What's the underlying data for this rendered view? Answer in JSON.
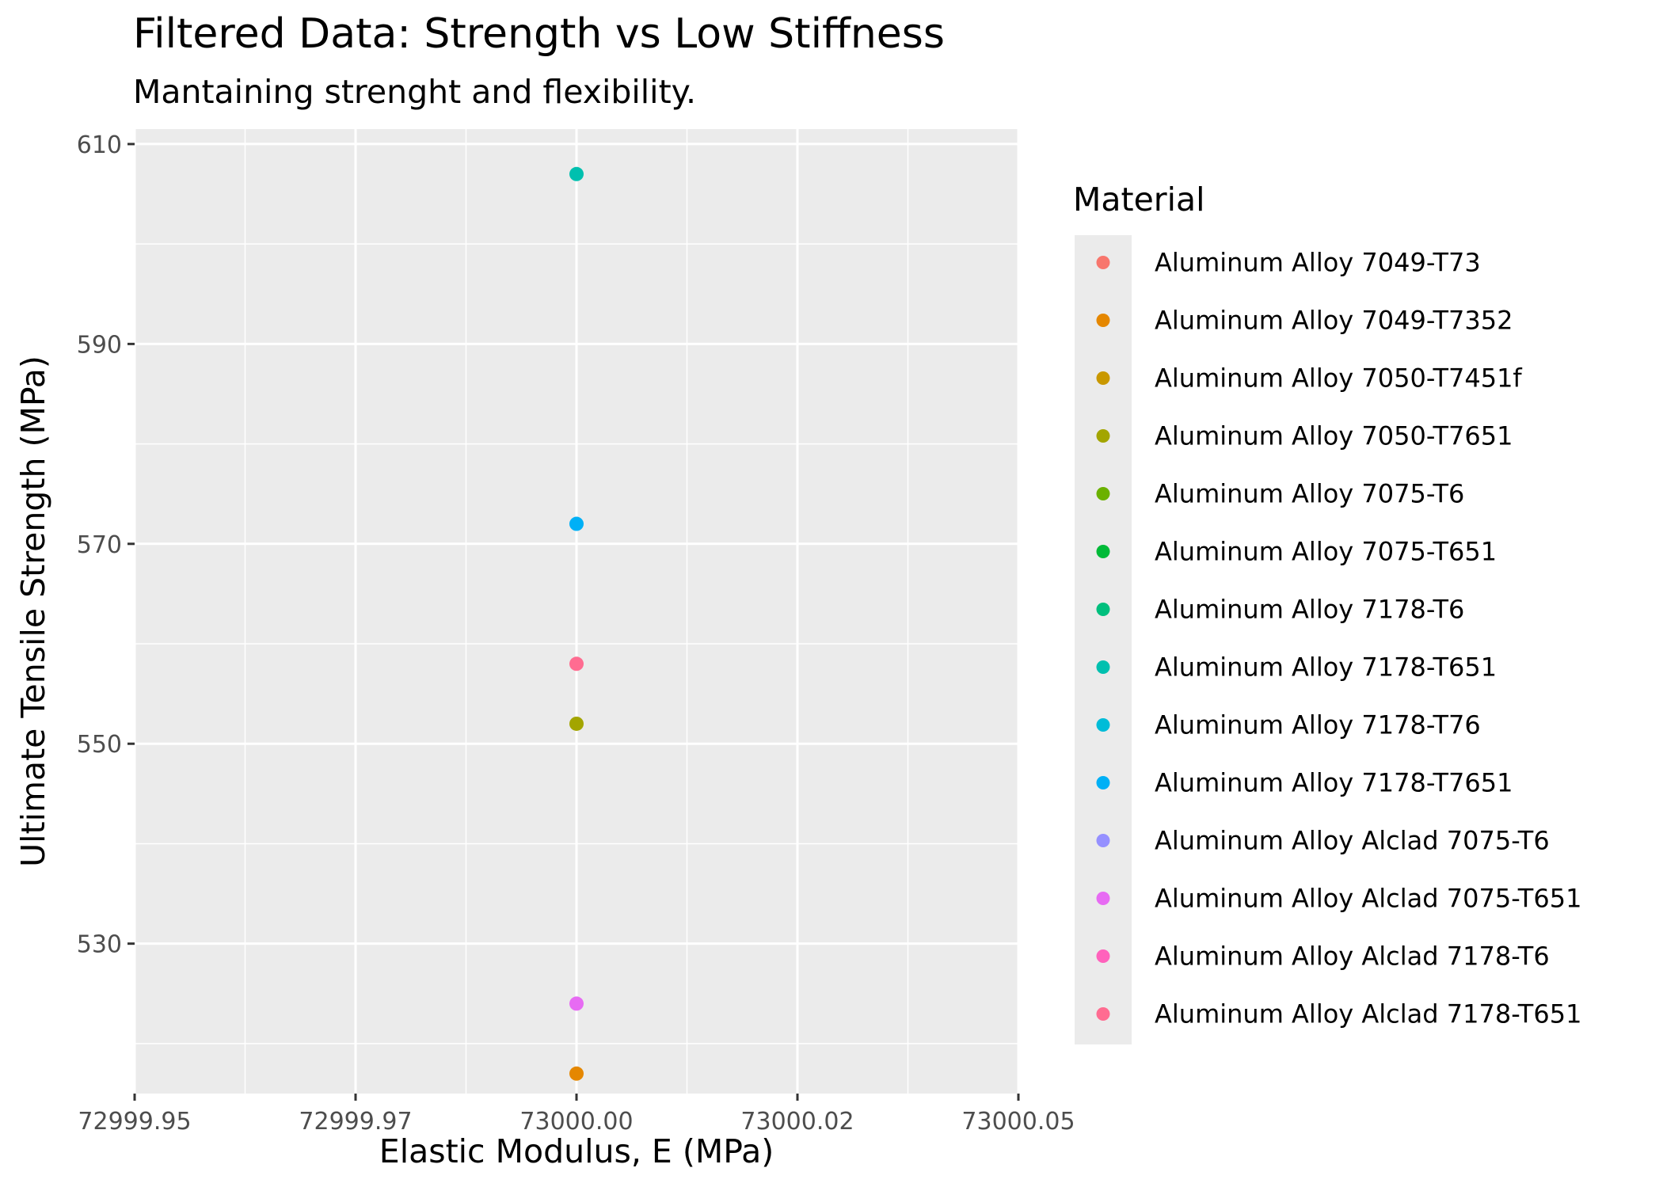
{
  "chart_data": {
    "type": "scatter",
    "title": "Filtered Data: Strength vs Low Stiffness",
    "subtitle": "Mantaining strenght and flexibility.",
    "xlabel": "Elastic Modulus, E (MPa)",
    "ylabel": "Ultimate Tensile Strength (MPa)",
    "xlim": [
      72999.95,
      73000.05
    ],
    "ylim": [
      515,
      611.5
    ],
    "x_ticks": [
      72999.95,
      72999.975,
      73000.0,
      73000.025,
      73000.05
    ],
    "x_tick_labels": [
      "72999.95",
      "72999.97",
      "73000.00",
      "73000.02",
      "73000.05"
    ],
    "y_ticks": [
      530,
      550,
      570,
      590,
      610
    ],
    "y_tick_labels": [
      "530",
      "550",
      "570",
      "590",
      "610"
    ],
    "grid": true,
    "legend_title": "Material",
    "legend_position": "right",
    "series": [
      {
        "name": "Aluminum Alloy 7049-T73",
        "color": "#F8766D",
        "points": []
      },
      {
        "name": "Aluminum Alloy 7049-T7352",
        "color": "#E58700",
        "points": [
          [
            73000.0,
            517
          ]
        ]
      },
      {
        "name": "Aluminum Alloy 7050-T7451f",
        "color": "#C99800",
        "points": []
      },
      {
        "name": "Aluminum Alloy 7050-T7651",
        "color": "#A3A500",
        "points": [
          [
            73000.0,
            552
          ]
        ]
      },
      {
        "name": "Aluminum Alloy 7075-T6",
        "color": "#6BB100",
        "points": []
      },
      {
        "name": "Aluminum Alloy 7075-T651",
        "color": "#00BA38",
        "points": []
      },
      {
        "name": "Aluminum Alloy 7178-T6",
        "color": "#00BF7D",
        "points": []
      },
      {
        "name": "Aluminum Alloy 7178-T651",
        "color": "#00C0AF",
        "points": [
          [
            73000.0,
            607
          ]
        ]
      },
      {
        "name": "Aluminum Alloy 7178-T76",
        "color": "#00BCD8",
        "points": []
      },
      {
        "name": "Aluminum Alloy 7178-T7651",
        "color": "#00B0F6",
        "points": [
          [
            73000.0,
            572
          ]
        ]
      },
      {
        "name": "Aluminum Alloy Alclad 7075-T6",
        "color": "#9590FF",
        "points": []
      },
      {
        "name": "Aluminum Alloy Alclad 7075-T651",
        "color": "#E76BF3",
        "points": [
          [
            73000.0,
            524
          ]
        ]
      },
      {
        "name": "Aluminum Alloy Alclad 7178-T6",
        "color": "#FF62BC",
        "points": []
      },
      {
        "name": "Aluminum Alloy Alclad 7178-T651",
        "color": "#FF6C91",
        "points": [
          [
            73000.0,
            558
          ]
        ]
      }
    ],
    "colors": {
      "panel_background": "#EBEBEB",
      "grid": "#FFFFFF",
      "tick": "#333333"
    }
  }
}
